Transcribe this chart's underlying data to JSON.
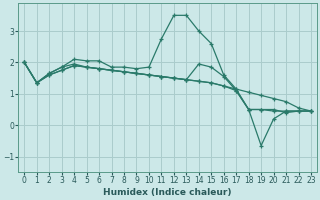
{
  "xlabel": "Humidex (Indice chaleur)",
  "background_color": "#cce8e8",
  "grid_color": "#aacccc",
  "line_color": "#2a7a6a",
  "xlim": [
    -0.5,
    23.5
  ],
  "ylim": [
    -1.5,
    3.9
  ],
  "yticks": [
    -1,
    0,
    1,
    2,
    3
  ],
  "xticks": [
    0,
    1,
    2,
    3,
    4,
    5,
    6,
    7,
    8,
    9,
    10,
    11,
    12,
    13,
    14,
    15,
    16,
    17,
    18,
    19,
    20,
    21,
    22,
    23
  ],
  "line1_x": [
    0,
    1,
    2,
    3,
    4,
    5,
    6,
    7,
    8,
    9,
    10,
    11,
    12,
    13,
    14,
    15,
    16,
    17,
    18,
    19,
    20,
    21,
    22,
    23
  ],
  "line1_y": [
    2.0,
    1.35,
    1.65,
    1.85,
    2.1,
    2.05,
    2.05,
    1.85,
    1.85,
    1.8,
    1.85,
    2.75,
    3.5,
    3.5,
    3.0,
    2.6,
    1.6,
    1.15,
    0.5,
    0.5,
    0.5,
    0.4,
    0.45,
    0.45
  ],
  "line2_x": [
    0,
    1,
    2,
    3,
    4,
    5,
    6,
    7,
    8,
    9,
    10,
    11,
    12,
    13,
    14,
    15,
    16,
    17,
    18,
    19,
    20,
    21,
    22,
    23
  ],
  "line2_y": [
    2.0,
    1.35,
    1.65,
    1.85,
    1.95,
    1.85,
    1.8,
    1.75,
    1.7,
    1.65,
    1.6,
    1.55,
    1.5,
    1.45,
    1.4,
    1.35,
    1.25,
    1.15,
    1.05,
    0.95,
    0.85,
    0.75,
    0.55,
    0.45
  ],
  "line3_x": [
    0,
    1,
    2,
    3,
    4,
    5,
    6,
    7,
    8,
    9,
    10,
    11,
    12,
    13,
    14,
    15,
    16,
    17,
    18,
    19,
    20,
    21,
    22,
    23
  ],
  "line3_y": [
    2.0,
    1.35,
    1.6,
    1.75,
    1.9,
    1.85,
    1.8,
    1.75,
    1.7,
    1.65,
    1.6,
    1.55,
    1.5,
    1.45,
    1.95,
    1.85,
    1.55,
    1.1,
    0.5,
    0.5,
    0.45,
    0.45,
    0.45,
    0.45
  ],
  "line4_x": [
    0,
    1,
    2,
    3,
    4,
    5,
    6,
    7,
    8,
    9,
    10,
    11,
    12,
    13,
    14,
    15,
    16,
    17,
    18,
    19,
    20,
    21,
    22,
    23
  ],
  "line4_y": [
    2.0,
    1.35,
    1.6,
    1.75,
    1.9,
    1.85,
    1.8,
    1.75,
    1.7,
    1.65,
    1.6,
    1.55,
    1.5,
    1.45,
    1.4,
    1.35,
    1.25,
    1.1,
    0.5,
    -0.65,
    0.2,
    0.45,
    0.45,
    0.45
  ]
}
